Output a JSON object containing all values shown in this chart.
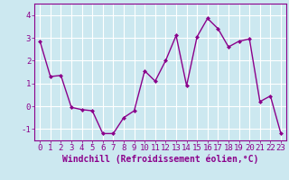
{
  "x": [
    0,
    1,
    2,
    3,
    4,
    5,
    6,
    7,
    8,
    9,
    10,
    11,
    12,
    13,
    14,
    15,
    16,
    17,
    18,
    19,
    20,
    21,
    22,
    23
  ],
  "y": [
    2.85,
    1.3,
    1.35,
    -0.05,
    -0.15,
    -0.2,
    -1.2,
    -1.2,
    -0.5,
    -0.2,
    1.55,
    1.1,
    2.0,
    3.1,
    0.9,
    3.05,
    3.85,
    3.4,
    2.6,
    2.85,
    2.95,
    0.2,
    0.45,
    -1.2
  ],
  "line_color": "#8B008B",
  "marker": "D",
  "markersize": 2.0,
  "linewidth": 1.0,
  "xlabel": "Windchill (Refroidissement éolien,°C)",
  "ylabel": "",
  "title": "",
  "xlim": [
    -0.5,
    23.5
  ],
  "ylim": [
    -1.5,
    4.5
  ],
  "yticks": [
    -1,
    0,
    1,
    2,
    3,
    4
  ],
  "xticks": [
    0,
    1,
    2,
    3,
    4,
    5,
    6,
    7,
    8,
    9,
    10,
    11,
    12,
    13,
    14,
    15,
    16,
    17,
    18,
    19,
    20,
    21,
    22,
    23
  ],
  "bg_color": "#cce8f0",
  "grid_color": "#ffffff",
  "tick_color": "#8B008B",
  "tick_labelsize": 6.5,
  "xlabel_fontsize": 7.0,
  "xlabel_bold": true,
  "xlabel_color": "#8B008B",
  "spine_color": "#8B008B"
}
